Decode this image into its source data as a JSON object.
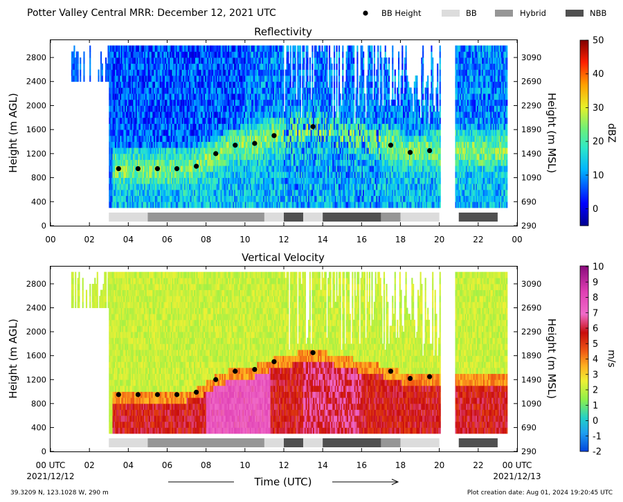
{
  "header": {
    "title": "Potter Valley Central MRR:  December 12, 2021 UTC",
    "legend": [
      {
        "label": "BB Height",
        "marker": "dot",
        "color": "#000000"
      },
      {
        "label": "BB",
        "marker": "box",
        "color": "#dcdcdc"
      },
      {
        "label": "Hybrid",
        "marker": "box",
        "color": "#969696"
      },
      {
        "label": "NBB",
        "marker": "box",
        "color": "#505050"
      }
    ]
  },
  "footer": {
    "location": "39.3209 N, 123.1028 W, 290 m",
    "created": "Plot creation date: Aug 01, 2024 19:20:45 UTC",
    "start_date": "2021/12/12",
    "end_date": "2021/12/13",
    "xlabel": "Time (UTC)"
  },
  "chart_data": [
    {
      "type": "heatmap",
      "title": "Reflectivity",
      "ylabel": "Height (m AGL)",
      "y2label": "Height (m MSL)",
      "xlim": [
        0,
        24
      ],
      "ylim": [
        0,
        3100
      ],
      "x_ticks": [
        "00",
        "02",
        "04",
        "06",
        "08",
        "10",
        "12",
        "14",
        "16",
        "18",
        "20",
        "22",
        "00"
      ],
      "y_ticks": [
        0,
        400,
        800,
        1200,
        1600,
        2000,
        2400,
        2800
      ],
      "y2_ticks": [
        290,
        690,
        1090,
        1490,
        1890,
        2290,
        2690,
        3090
      ],
      "colorbar": {
        "label": "dBZ",
        "min": -5,
        "max": 50,
        "ticks": [
          0,
          10,
          20,
          30,
          40,
          50
        ]
      },
      "bb_height": {
        "x": [
          3.5,
          4.5,
          5.5,
          6.5,
          7.5,
          8.5,
          9.5,
          10.5,
          11.5,
          13.5,
          17.5,
          18.5,
          19.5
        ],
        "y": [
          950,
          950,
          950,
          950,
          990,
          1200,
          1340,
          1370,
          1500,
          1650,
          1340,
          1220,
          1250
        ]
      },
      "bands": [
        {
          "start": 3.0,
          "end": 5.0,
          "type": "BB"
        },
        {
          "start": 5.0,
          "end": 11.0,
          "type": "Hybrid"
        },
        {
          "start": 11.0,
          "end": 12.0,
          "type": "BB"
        },
        {
          "start": 12.0,
          "end": 13.0,
          "type": "NBB"
        },
        {
          "start": 13.0,
          "end": 14.0,
          "type": "BB"
        },
        {
          "start": 14.0,
          "end": 17.0,
          "type": "NBB"
        },
        {
          "start": 17.0,
          "end": 18.0,
          "type": "Hybrid"
        },
        {
          "start": 18.0,
          "end": 20.0,
          "type": "BB"
        },
        {
          "start": 21.0,
          "end": 23.0,
          "type": "NBB"
        }
      ]
    },
    {
      "type": "heatmap",
      "title": "Vertical Velocity",
      "ylabel": "Height (m AGL)",
      "y2label": "Height (m MSL)",
      "xlim": [
        0,
        24
      ],
      "ylim": [
        0,
        3100
      ],
      "x_ticks": [
        "00 UTC",
        "02",
        "04",
        "06",
        "08",
        "10",
        "12",
        "14",
        "16",
        "18",
        "20",
        "22",
        "00 UTC"
      ],
      "y_ticks": [
        0,
        400,
        800,
        1200,
        1600,
        2000,
        2400,
        2800
      ],
      "y2_ticks": [
        290,
        690,
        1090,
        1490,
        1890,
        2290,
        2690,
        3090
      ],
      "colorbar": {
        "label": "m/s",
        "min": -2,
        "max": 10,
        "ticks": [
          -2,
          -1,
          0,
          1,
          2,
          3,
          4,
          5,
          6,
          7,
          8,
          9,
          10
        ]
      },
      "bb_height": {
        "x": [
          3.5,
          4.5,
          5.5,
          6.5,
          7.5,
          8.5,
          9.5,
          10.5,
          11.5,
          13.5,
          17.5,
          18.5,
          19.5
        ],
        "y": [
          950,
          950,
          950,
          950,
          990,
          1200,
          1340,
          1370,
          1500,
          1650,
          1340,
          1220,
          1250
        ]
      },
      "bands": [
        {
          "start": 3.0,
          "end": 5.0,
          "type": "BB"
        },
        {
          "start": 5.0,
          "end": 11.0,
          "type": "Hybrid"
        },
        {
          "start": 11.0,
          "end": 12.0,
          "type": "BB"
        },
        {
          "start": 12.0,
          "end": 13.0,
          "type": "NBB"
        },
        {
          "start": 13.0,
          "end": 14.0,
          "type": "BB"
        },
        {
          "start": 14.0,
          "end": 17.0,
          "type": "NBB"
        },
        {
          "start": 17.0,
          "end": 18.0,
          "type": "Hybrid"
        },
        {
          "start": 18.0,
          "end": 20.0,
          "type": "BB"
        },
        {
          "start": 21.0,
          "end": 23.0,
          "type": "NBB"
        }
      ]
    }
  ]
}
